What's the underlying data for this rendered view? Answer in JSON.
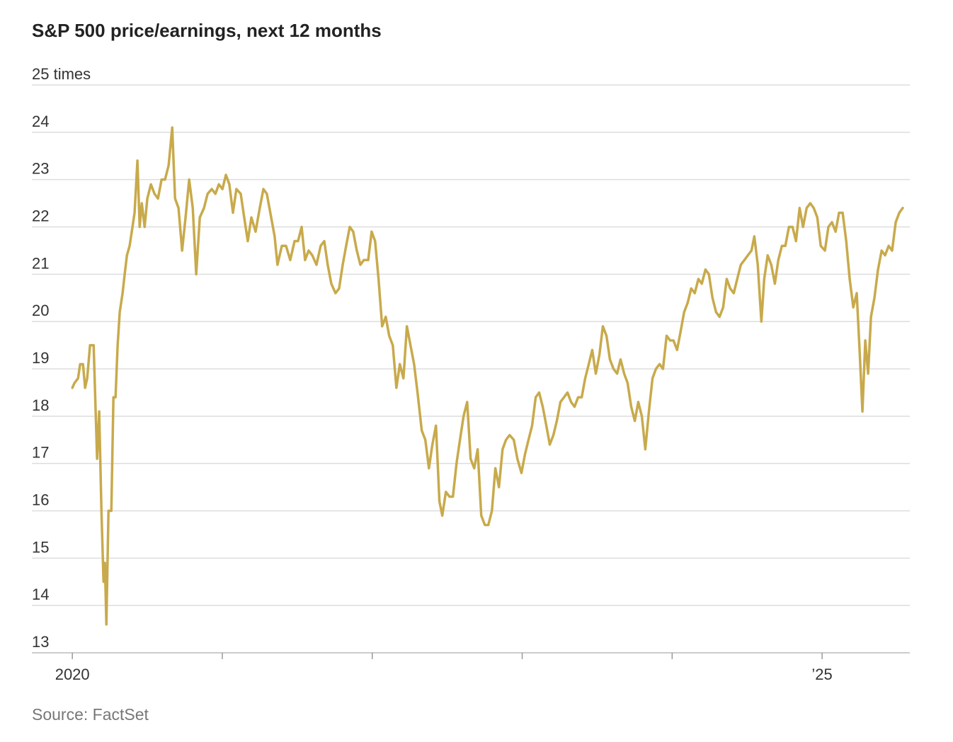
{
  "chart_data": {
    "type": "line",
    "title": "S&P 500 price/earnings, next 12 months",
    "source": "Source: FactSet",
    "color": "#c8aa4c",
    "grid": true,
    "xlim": [
      2019.73,
      2025.585
    ],
    "xticks": [
      2020,
      {
        "value": 2021,
        "label": null
      },
      {
        "value": 2022,
        "label": null
      },
      {
        "value": 2023,
        "label": null
      },
      {
        "value": 2024,
        "label": null
      },
      {
        "value": 2025,
        "label": "’25"
      }
    ],
    "ylim": [
      13,
      25
    ],
    "yticks": [
      13,
      14,
      15,
      16,
      17,
      18,
      19,
      20,
      21,
      22,
      23,
      24,
      {
        "value": 25,
        "label": "25 times"
      }
    ],
    "x": [
      2020.0,
      2020.014,
      2020.038,
      2020.052,
      2020.071,
      2020.085,
      2020.099,
      2020.118,
      2020.142,
      2020.165,
      2020.179,
      2020.194,
      2020.208,
      2020.217,
      2020.227,
      2020.241,
      2020.26,
      2020.274,
      2020.288,
      2020.302,
      2020.316,
      2020.335,
      2020.349,
      2020.364,
      2020.382,
      2020.401,
      2020.415,
      2020.434,
      2020.449,
      2020.463,
      2020.482,
      2020.5,
      2020.524,
      2020.548,
      2020.571,
      2020.595,
      2020.618,
      2020.642,
      2020.666,
      2020.685,
      2020.708,
      2020.732,
      2020.755,
      2020.779,
      2020.803,
      2020.826,
      2020.85,
      2020.878,
      2020.902,
      2020.93,
      2020.954,
      2020.977,
      2021.001,
      2021.024,
      2021.047,
      2021.071,
      2021.094,
      2021.123,
      2021.146,
      2021.17,
      2021.194,
      2021.222,
      2021.25,
      2021.274,
      2021.297,
      2021.326,
      2021.349,
      2021.368,
      2021.397,
      2021.425,
      2021.453,
      2021.482,
      2021.505,
      2021.529,
      2021.552,
      2021.576,
      2021.6,
      2021.628,
      2021.656,
      2021.68,
      2021.703,
      2021.727,
      2021.755,
      2021.779,
      2021.803,
      2021.826,
      2021.85,
      2021.873,
      2021.897,
      2021.921,
      2021.944,
      2021.973,
      2021.996,
      2022.019,
      2022.042,
      2022.066,
      2022.09,
      2022.113,
      2022.137,
      2022.161,
      2022.184,
      2022.208,
      2022.231,
      2022.255,
      2022.279,
      2022.302,
      2022.33,
      2022.354,
      2022.378,
      2022.401,
      2022.425,
      2022.448,
      2022.467,
      2022.491,
      2022.515,
      2022.538,
      2022.562,
      2022.585,
      2022.609,
      2022.633,
      2022.656,
      2022.68,
      2022.703,
      2022.727,
      2022.751,
      2022.774,
      2022.798,
      2022.821,
      2022.845,
      2022.869,
      2022.892,
      2022.916,
      2022.944,
      2022.968,
      2022.995,
      2023.019,
      2023.042,
      2023.066,
      2023.09,
      2023.113,
      2023.137,
      2023.161,
      2023.184,
      2023.208,
      2023.231,
      2023.255,
      2023.279,
      2023.302,
      2023.326,
      2023.349,
      2023.373,
      2023.397,
      2023.42,
      2023.444,
      2023.467,
      2023.491,
      2023.515,
      2023.538,
      2023.562,
      2023.585,
      2023.609,
      2023.633,
      2023.656,
      2023.68,
      2023.703,
      2023.727,
      2023.751,
      2023.774,
      2023.798,
      2023.821,
      2023.845,
      2023.869,
      2023.892,
      2023.916,
      2023.939,
      2023.963,
      2023.987,
      2024.009,
      2024.033,
      2024.057,
      2024.08,
      2024.104,
      2024.127,
      2024.151,
      2024.175,
      2024.198,
      2024.222,
      2024.245,
      2024.269,
      2024.293,
      2024.316,
      2024.34,
      2024.364,
      2024.387,
      2024.411,
      2024.434,
      2024.458,
      2024.482,
      2024.505,
      2024.529,
      2024.548,
      2024.571,
      2024.595,
      2024.614,
      2024.637,
      2024.661,
      2024.685,
      2024.708,
      2024.732,
      2024.755,
      2024.779,
      2024.803,
      2024.826,
      2024.85,
      2024.873,
      2024.897,
      2024.921,
      2024.944,
      2024.968,
      2024.991,
      2025.019,
      2025.042,
      2025.066,
      2025.09,
      2025.113,
      2025.137,
      2025.161,
      2025.184,
      2025.208,
      2025.231,
      2025.25,
      2025.269,
      2025.288,
      2025.307,
      2025.326,
      2025.349,
      2025.373,
      2025.397,
      2025.42,
      2025.444,
      2025.467,
      2025.491,
      2025.515,
      2025.538
    ],
    "values": [
      18.6,
      18.7,
      18.8,
      19.1,
      19.1,
      18.6,
      18.8,
      19.5,
      19.5,
      17.1,
      18.1,
      16.0,
      14.5,
      14.9,
      13.6,
      16.0,
      16.0,
      18.4,
      18.4,
      19.5,
      20.2,
      20.6,
      21.0,
      21.4,
      21.6,
      22.0,
      22.3,
      23.4,
      22.0,
      22.5,
      22.0,
      22.6,
      22.9,
      22.7,
      22.6,
      23.0,
      23.0,
      23.3,
      24.1,
      22.6,
      22.4,
      21.5,
      22.2,
      23.0,
      22.4,
      21.0,
      22.2,
      22.4,
      22.7,
      22.8,
      22.7,
      22.9,
      22.8,
      23.1,
      22.9,
      22.3,
      22.8,
      22.7,
      22.2,
      21.7,
      22.2,
      21.9,
      22.4,
      22.8,
      22.7,
      22.2,
      21.8,
      21.2,
      21.6,
      21.6,
      21.3,
      21.7,
      21.7,
      22.0,
      21.3,
      21.5,
      21.4,
      21.2,
      21.6,
      21.7,
      21.2,
      20.8,
      20.6,
      20.7,
      21.2,
      21.6,
      22.0,
      21.9,
      21.5,
      21.2,
      21.3,
      21.3,
      21.9,
      21.7,
      20.9,
      19.9,
      20.1,
      19.7,
      19.5,
      18.6,
      19.1,
      18.8,
      19.9,
      19.5,
      19.1,
      18.5,
      17.7,
      17.5,
      16.9,
      17.4,
      17.8,
      16.2,
      15.9,
      16.4,
      16.3,
      16.3,
      17.0,
      17.5,
      18.0,
      18.3,
      17.1,
      16.9,
      17.3,
      15.9,
      15.7,
      15.7,
      16.0,
      16.9,
      16.5,
      17.3,
      17.5,
      17.6,
      17.5,
      17.1,
      16.8,
      17.2,
      17.5,
      17.8,
      18.4,
      18.5,
      18.2,
      17.8,
      17.4,
      17.6,
      17.9,
      18.3,
      18.4,
      18.5,
      18.3,
      18.2,
      18.4,
      18.4,
      18.8,
      19.1,
      19.4,
      18.9,
      19.3,
      19.9,
      19.7,
      19.2,
      19.0,
      18.9,
      19.2,
      18.9,
      18.7,
      18.2,
      17.9,
      18.3,
      18.0,
      17.3,
      18.1,
      18.8,
      19.0,
      19.1,
      19.0,
      19.7,
      19.6,
      19.6,
      19.4,
      19.8,
      20.2,
      20.4,
      20.7,
      20.6,
      20.9,
      20.8,
      21.1,
      21.0,
      20.5,
      20.2,
      20.1,
      20.3,
      20.9,
      20.7,
      20.6,
      20.9,
      21.2,
      21.3,
      21.4,
      21.5,
      21.8,
      21.2,
      20.0,
      20.9,
      21.4,
      21.2,
      20.8,
      21.3,
      21.6,
      21.6,
      22.0,
      22.0,
      21.7,
      22.4,
      22.0,
      22.4,
      22.5,
      22.4,
      22.2,
      21.6,
      21.5,
      22.0,
      22.1,
      21.9,
      22.3,
      22.3,
      21.7,
      20.9,
      20.3,
      20.6,
      19.4,
      18.1,
      19.6,
      18.9,
      20.1,
      20.5,
      21.1,
      21.5,
      21.4,
      21.6,
      21.5,
      22.1,
      22.3,
      22.4
    ]
  }
}
